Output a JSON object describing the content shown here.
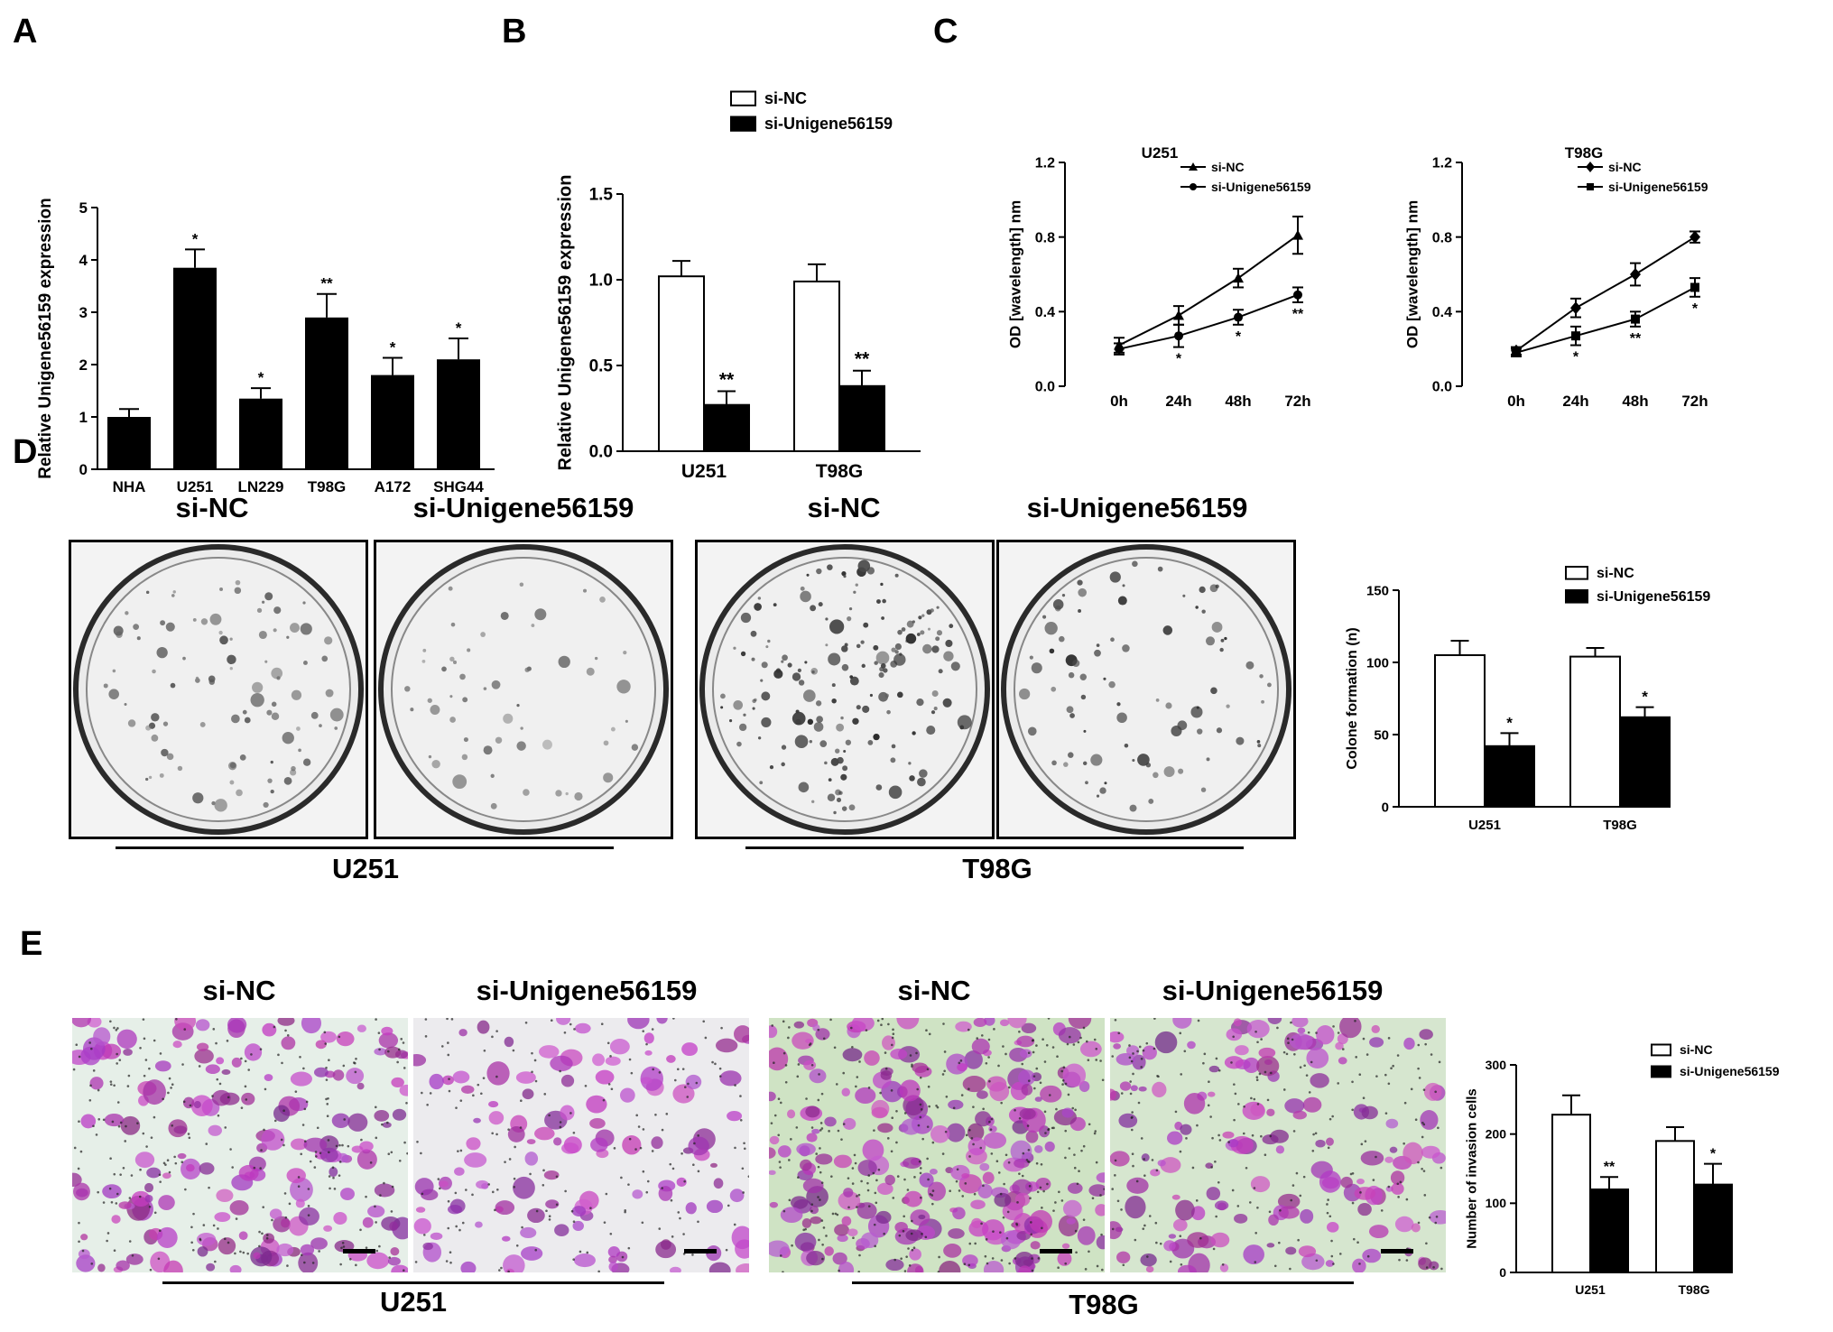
{
  "panels": {
    "A": "A",
    "B": "B",
    "C": "C",
    "D": "D",
    "E": "E"
  },
  "photo_labels": {
    "si_nc": "si-NC",
    "si_uni": "si-Unigene56159"
  },
  "cell_lines": {
    "u251": "U251",
    "t98g": "T98G"
  },
  "colors": {
    "black": "#000000",
    "white": "#ffffff",
    "stain": "#8a2f9e",
    "dish_bg": "#f2f2f2",
    "u251_bg": "#e7f0ea",
    "t98g_bg": "#cfe3c4"
  },
  "chart_data": [
    {
      "id": "A",
      "type": "bar",
      "ylabel": "Relative Unigene56159 expression",
      "ylim": [
        0,
        5
      ],
      "yticks": [
        "0",
        "1",
        "2",
        "3",
        "4",
        "5"
      ],
      "categories": [
        "NHA",
        "U251",
        "LN229",
        "T98G",
        "A172",
        "SHG44"
      ],
      "series": [
        {
          "values": [
            1.0,
            3.85,
            1.35,
            2.9,
            1.8,
            2.1
          ],
          "errors": [
            0.15,
            0.35,
            0.2,
            0.45,
            0.33,
            0.4
          ]
        }
      ],
      "annotations": [
        "",
        "*",
        "*",
        "**",
        "*",
        "*"
      ]
    },
    {
      "id": "B",
      "type": "bar",
      "ylabel": "Relative Unigene56159 expression",
      "ylim": [
        0,
        1.5
      ],
      "yticks": [
        "0.0",
        "0.5",
        "1.0",
        "1.5"
      ],
      "categories": [
        "U251",
        "T98G"
      ],
      "series": [
        {
          "name": "si-NC",
          "values": [
            1.02,
            0.99
          ],
          "errors": [
            0.09,
            0.1
          ]
        },
        {
          "name": "si-Unigene56159",
          "values": [
            0.27,
            0.38
          ],
          "errors": [
            0.08,
            0.09
          ]
        }
      ],
      "annotations": [
        "**",
        "**"
      ]
    },
    {
      "id": "C1",
      "type": "line",
      "title": "U251",
      "ylabel": "OD [wavelength] nm",
      "ylim": [
        0,
        1.2
      ],
      "yticks": [
        "0.0",
        "0.4",
        "0.8",
        "1.2"
      ],
      "x": [
        "0h",
        "24h",
        "48h",
        "72h"
      ],
      "series": [
        {
          "name": "si-NC",
          "marker": "triangle",
          "values": [
            0.22,
            0.38,
            0.58,
            0.81
          ],
          "errors": [
            0.04,
            0.05,
            0.05,
            0.1
          ]
        },
        {
          "name": "si-Unigene56159",
          "marker": "circle",
          "values": [
            0.2,
            0.27,
            0.37,
            0.49
          ],
          "errors": [
            0.03,
            0.06,
            0.04,
            0.04
          ]
        }
      ],
      "annotations": [
        "",
        "*",
        "*",
        "**"
      ]
    },
    {
      "id": "C2",
      "type": "line",
      "title": "T98G",
      "ylabel": "OD [wavelength] nm",
      "ylim": [
        0,
        1.2
      ],
      "yticks": [
        "0.0",
        "0.4",
        "0.8",
        "1.2"
      ],
      "x": [
        "0h",
        "24h",
        "48h",
        "72h"
      ],
      "series": [
        {
          "name": "si-NC",
          "marker": "diamond",
          "values": [
            0.19,
            0.42,
            0.6,
            0.8
          ],
          "errors": [
            0.02,
            0.05,
            0.06,
            0.03
          ]
        },
        {
          "name": "si-Unigene56159",
          "marker": "square",
          "values": [
            0.18,
            0.27,
            0.36,
            0.53
          ],
          "errors": [
            0.02,
            0.05,
            0.04,
            0.05
          ]
        }
      ],
      "annotations": [
        "",
        "*",
        "**",
        "*"
      ]
    },
    {
      "id": "D",
      "type": "bar",
      "ylabel": "Colone formation (n)",
      "ylim": [
        0,
        150
      ],
      "yticks": [
        "0",
        "50",
        "100",
        "150"
      ],
      "categories": [
        "U251",
        "T98G"
      ],
      "series": [
        {
          "name": "si-NC",
          "values": [
            105,
            104
          ],
          "errors": [
            10,
            6
          ]
        },
        {
          "name": "si-Unigene56159",
          "values": [
            42,
            62
          ],
          "errors": [
            9,
            7
          ]
        }
      ],
      "annotations": [
        "*",
        "*"
      ]
    },
    {
      "id": "E",
      "type": "bar",
      "ylabel": "Number of invasion cells",
      "ylim": [
        0,
        300
      ],
      "yticks": [
        "0",
        "100",
        "200",
        "300"
      ],
      "categories": [
        "U251",
        "T98G"
      ],
      "series": [
        {
          "name": "si-NC",
          "values": [
            228,
            190
          ],
          "errors": [
            28,
            20
          ]
        },
        {
          "name": "si-Unigene56159",
          "values": [
            120,
            127
          ],
          "errors": [
            18,
            30
          ]
        }
      ],
      "annotations": [
        "**",
        "*"
      ]
    }
  ]
}
